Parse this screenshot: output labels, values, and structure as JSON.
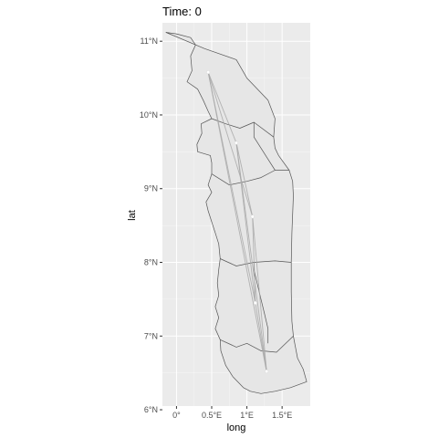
{
  "chart_data": {
    "type": "map",
    "title": "Time: 0",
    "xlabel": "long",
    "ylabel": "lat",
    "xlim": [
      -0.2,
      1.9
    ],
    "ylim": [
      6.05,
      11.25
    ],
    "x_ticks": [
      {
        "value": 0,
        "label": "0°"
      },
      {
        "value": 0.5,
        "label": "0.5°E"
      },
      {
        "value": 1.0,
        "label": "1°E"
      },
      {
        "value": 1.5,
        "label": "1.5°E"
      }
    ],
    "y_ticks": [
      {
        "value": 6,
        "label": "6°N"
      },
      {
        "value": 7,
        "label": "7°N"
      },
      {
        "value": 8,
        "label": "8°N"
      },
      {
        "value": 9,
        "label": "9°N"
      },
      {
        "value": 10,
        "label": "10°N"
      },
      {
        "value": 11,
        "label": "11°N"
      }
    ],
    "grid": true,
    "colors": {
      "panel": "#ebebeb",
      "grid_major": "#ffffff",
      "region_fill": "#e6e6e6",
      "region_stroke": "#555555",
      "flow_line": "#a8a8a8",
      "point": "#ffffff"
    },
    "outline": [
      [
        -0.15,
        11.12
      ],
      [
        0.0,
        11.1
      ],
      [
        0.2,
        11.05
      ],
      [
        0.27,
        10.95
      ],
      [
        0.2,
        10.8
      ],
      [
        0.22,
        10.6
      ],
      [
        0.15,
        10.45
      ],
      [
        0.3,
        10.35
      ],
      [
        0.38,
        10.2
      ],
      [
        0.45,
        10.05
      ],
      [
        0.5,
        9.95
      ],
      [
        0.35,
        9.88
      ],
      [
        0.36,
        9.75
      ],
      [
        0.29,
        9.6
      ],
      [
        0.3,
        9.5
      ],
      [
        0.48,
        9.45
      ],
      [
        0.5,
        9.35
      ],
      [
        0.5,
        9.2
      ],
      [
        0.45,
        9.05
      ],
      [
        0.5,
        8.95
      ],
      [
        0.42,
        8.82
      ],
      [
        0.45,
        8.7
      ],
      [
        0.5,
        8.55
      ],
      [
        0.55,
        8.4
      ],
      [
        0.6,
        8.25
      ],
      [
        0.62,
        8.05
      ],
      [
        0.6,
        7.9
      ],
      [
        0.58,
        7.72
      ],
      [
        0.6,
        7.55
      ],
      [
        0.55,
        7.4
      ],
      [
        0.6,
        7.25
      ],
      [
        0.55,
        7.1
      ],
      [
        0.62,
        6.95
      ],
      [
        0.63,
        6.8
      ],
      [
        0.7,
        6.6
      ],
      [
        0.8,
        6.45
      ],
      [
        0.95,
        6.3
      ],
      [
        1.05,
        6.25
      ],
      [
        1.2,
        6.22
      ],
      [
        1.4,
        6.25
      ],
      [
        1.62,
        6.3
      ],
      [
        1.85,
        6.38
      ],
      [
        1.8,
        6.55
      ],
      [
        1.72,
        6.7
      ],
      [
        1.68,
        6.9
      ],
      [
        1.66,
        7.0
      ],
      [
        1.64,
        7.2
      ],
      [
        1.63,
        7.6
      ],
      [
        1.63,
        8.0
      ],
      [
        1.64,
        8.4
      ],
      [
        1.66,
        8.9
      ],
      [
        1.65,
        9.1
      ],
      [
        1.6,
        9.25
      ],
      [
        1.45,
        9.45
      ],
      [
        1.4,
        9.55
      ],
      [
        1.38,
        9.7
      ],
      [
        1.4,
        9.95
      ],
      [
        1.3,
        10.2
      ],
      [
        1.0,
        10.5
      ],
      [
        0.85,
        10.75
      ],
      [
        0.4,
        10.9
      ],
      [
        -0.15,
        11.12
      ]
    ],
    "borders": [
      [
        [
          0.5,
          9.95
        ],
        [
          0.7,
          9.88
        ],
        [
          0.9,
          9.82
        ],
        [
          1.1,
          9.9
        ],
        [
          1.38,
          9.7
        ]
      ],
      [
        [
          0.5,
          9.2
        ],
        [
          0.75,
          9.05
        ],
        [
          1.0,
          9.1
        ],
        [
          1.2,
          9.15
        ],
        [
          1.4,
          9.25
        ],
        [
          1.6,
          9.25
        ]
      ],
      [
        [
          0.62,
          8.05
        ],
        [
          0.85,
          7.95
        ],
        [
          1.1,
          8.0
        ],
        [
          1.4,
          8.02
        ],
        [
          1.63,
          8.0
        ]
      ],
      [
        [
          0.62,
          6.95
        ],
        [
          0.85,
          6.85
        ],
        [
          1.0,
          6.9
        ],
        [
          1.2,
          6.8
        ],
        [
          1.42,
          6.78
        ],
        [
          1.66,
          7.0
        ]
      ],
      [
        [
          1.1,
          9.9
        ],
        [
          1.1,
          9.7
        ],
        [
          1.2,
          9.55
        ],
        [
          1.3,
          9.4
        ],
        [
          1.4,
          9.25
        ]
      ],
      [
        [
          1.1,
          8.0
        ],
        [
          1.1,
          7.9
        ],
        [
          1.15,
          7.7
        ],
        [
          1.2,
          7.5
        ],
        [
          1.25,
          7.3
        ],
        [
          1.3,
          7.1
        ],
        [
          1.3,
          6.9
        ]
      ]
    ],
    "points": [
      {
        "lon": 0.45,
        "lat": 10.58
      },
      {
        "lon": 0.85,
        "lat": 9.62
      },
      {
        "lon": 1.08,
        "lat": 8.62
      },
      {
        "lon": 1.12,
        "lat": 7.45
      },
      {
        "lon": 1.28,
        "lat": 6.52
      }
    ],
    "flows": [
      [
        0,
        1
      ],
      [
        0,
        2
      ],
      [
        0,
        3
      ],
      [
        0,
        4
      ],
      [
        1,
        2
      ],
      [
        1,
        3
      ],
      [
        1,
        4
      ],
      [
        2,
        3
      ],
      [
        2,
        4
      ],
      [
        3,
        4
      ]
    ]
  }
}
